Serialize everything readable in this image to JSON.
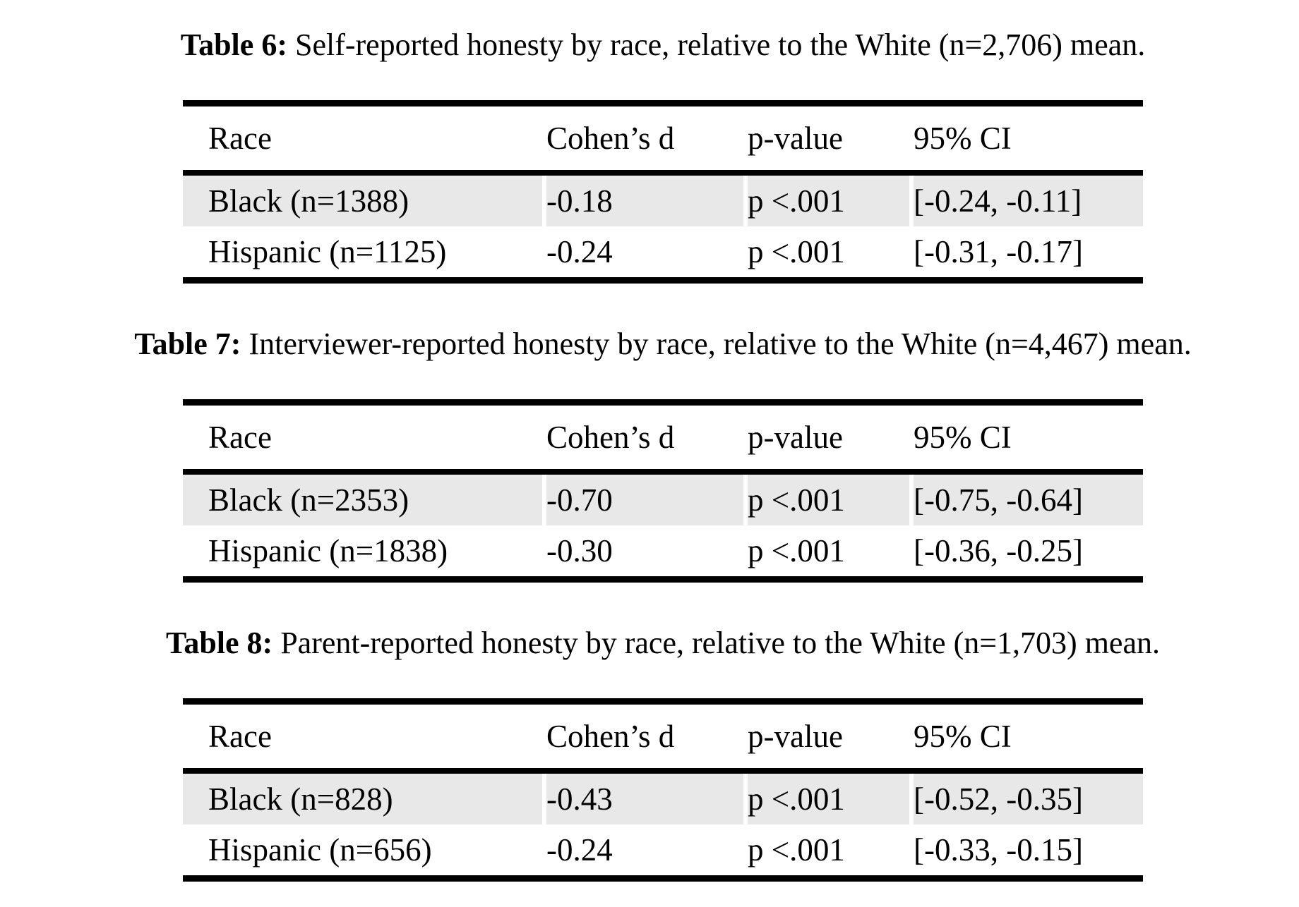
{
  "page": {
    "background": "#ffffff",
    "text_color": "#000000",
    "rule_color": "#000000",
    "row_shading_color": "#e8e8e8"
  },
  "tables": [
    {
      "label": "Table 6:",
      "caption": "Self-reported honesty by race, relative to the White (n=2,706) mean.",
      "columns": [
        "Race",
        "Cohen’s d",
        "p-value",
        "95% CI"
      ],
      "rows": [
        {
          "race": "Black (n=1388)",
          "cohens_d": "-0.18",
          "p_value": "p <.001",
          "ci_95": "[-0.24, -0.11]"
        },
        {
          "race": "Hispanic (n=1125)",
          "cohens_d": "-0.24",
          "p_value": "p <.001",
          "ci_95": "[-0.31, -0.17]"
        }
      ]
    },
    {
      "label": "Table 7:",
      "caption": "Interviewer-reported honesty by race, relative to the White (n=4,467) mean.",
      "columns": [
        "Race",
        "Cohen’s d",
        "p-value",
        "95% CI"
      ],
      "rows": [
        {
          "race": "Black (n=2353)",
          "cohens_d": "-0.70",
          "p_value": "p <.001",
          "ci_95": "[-0.75, -0.64]"
        },
        {
          "race": "Hispanic (n=1838)",
          "cohens_d": "-0.30",
          "p_value": "p <.001",
          "ci_95": "[-0.36, -0.25]"
        }
      ]
    },
    {
      "label": "Table 8:",
      "caption": "Parent-reported honesty by race, relative to the White (n=1,703) mean.",
      "columns": [
        "Race",
        "Cohen’s d",
        "p-value",
        "95% CI"
      ],
      "rows": [
        {
          "race": "Black (n=828)",
          "cohens_d": "-0.43",
          "p_value": "p <.001",
          "ci_95": "[-0.52, -0.35]"
        },
        {
          "race": "Hispanic (n=656)",
          "cohens_d": "-0.24",
          "p_value": "p <.001",
          "ci_95": "[-0.33, -0.15]"
        }
      ]
    }
  ]
}
